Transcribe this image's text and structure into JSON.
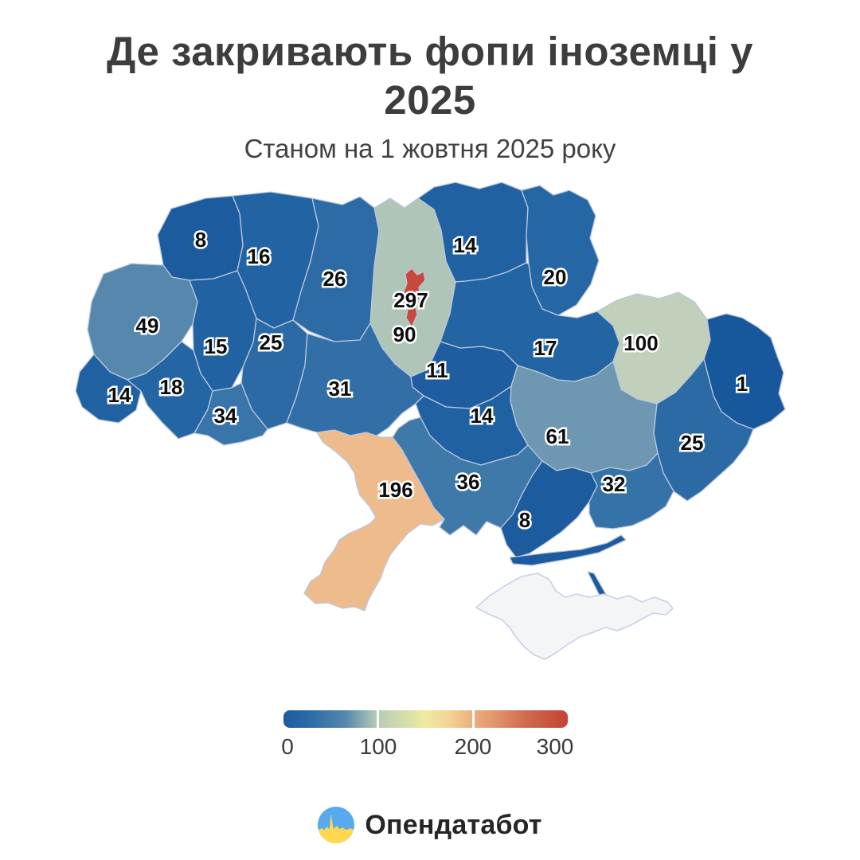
{
  "title": "Де закривають фопи іноземці у 2025",
  "title_lines": [
    "Де закривають фопи іноземці у",
    "2025"
  ],
  "subtitle": "Станом на 1 жовтня 2025 року",
  "chart_data": {
    "type": "choropleth",
    "title": "Де закривають фопи іноземці у 2025",
    "subtitle": "Станом на 1 жовтня 2025 року",
    "map": "ukraine-oblasts",
    "legend_position": "bottom",
    "value_range": [
      0,
      300
    ],
    "regions": [
      {
        "id": "volyn",
        "value": 8,
        "color": "#1b5b9e"
      },
      {
        "id": "rivne",
        "value": 16,
        "color": "#2263a3"
      },
      {
        "id": "zhytomyr",
        "value": 26,
        "color": "#2d6ba6"
      },
      {
        "id": "kyiv-oblast",
        "value": 90,
        "color": "#afc5b8"
      },
      {
        "id": "kyiv-city",
        "value": 297,
        "color": "#c8493c"
      },
      {
        "id": "chernihiv",
        "value": 14,
        "color": "#2061a2"
      },
      {
        "id": "sumy",
        "value": 20,
        "color": "#2566a4"
      },
      {
        "id": "lviv",
        "value": 49,
        "color": "#5688ae"
      },
      {
        "id": "ternopil",
        "value": 15,
        "color": "#2162a2"
      },
      {
        "id": "khmelnytskyi",
        "value": 25,
        "color": "#2c6aa6"
      },
      {
        "id": "zakarpattia",
        "value": 14,
        "color": "#2061a2"
      },
      {
        "id": "ivano-frankivsk",
        "value": 18,
        "color": "#2465a4"
      },
      {
        "id": "chernivtsi",
        "value": 34,
        "color": "#3a75a9"
      },
      {
        "id": "vinnytsia",
        "value": 31,
        "color": "#326fa7"
      },
      {
        "id": "cherkasy",
        "value": 11,
        "color": "#1e5ea0"
      },
      {
        "id": "poltava",
        "value": 17,
        "color": "#2364a3"
      },
      {
        "id": "kharkiv",
        "value": 100,
        "color": "#c0d0ba"
      },
      {
        "id": "luhansk",
        "value": 1,
        "color": "#17589c"
      },
      {
        "id": "kirovohrad",
        "value": 14,
        "color": "#2061a2"
      },
      {
        "id": "dnipro",
        "value": 61,
        "color": "#6e97b1"
      },
      {
        "id": "donetsk",
        "value": 25,
        "color": "#2c6aa6"
      },
      {
        "id": "odesa",
        "value": 196,
        "color": "#eebc8c"
      },
      {
        "id": "mykolaiv",
        "value": 36,
        "color": "#3f79aa"
      },
      {
        "id": "zaporizhzhia",
        "value": 32,
        "color": "#3572a8"
      },
      {
        "id": "kherson",
        "value": 8,
        "color": "#1b5b9e"
      },
      {
        "id": "syvash-strip",
        "value": null,
        "color": "#1b5b9e"
      },
      {
        "id": "arabat-spit",
        "value": null,
        "color": "#1b5b9e"
      },
      {
        "id": "crimea",
        "value": null,
        "color": "#f4f5f7"
      }
    ],
    "colorbar": {
      "min": 0,
      "max": 300,
      "ticks": [
        "0",
        "100",
        "200",
        "300"
      ],
      "gradient": [
        "#1d5b9f 0%",
        "#2e6da7 10%",
        "#5588ae 22%",
        "#b7ccb5 33%",
        "#cdd9ae 40%",
        "#eeeaa2 50%",
        "#f3d494 58%",
        "#edb17e 66%",
        "#e0936a 75%",
        "#d06b50 85%",
        "#c44335 100%"
      ]
    },
    "border_color": "#bcc7de",
    "no_data_border_color": "#c9cfe8"
  },
  "footer": {
    "brand": "Опендатабот",
    "logo_colors": {
      "blue": "#58aaf0",
      "yellow": "#ffd84d"
    }
  }
}
